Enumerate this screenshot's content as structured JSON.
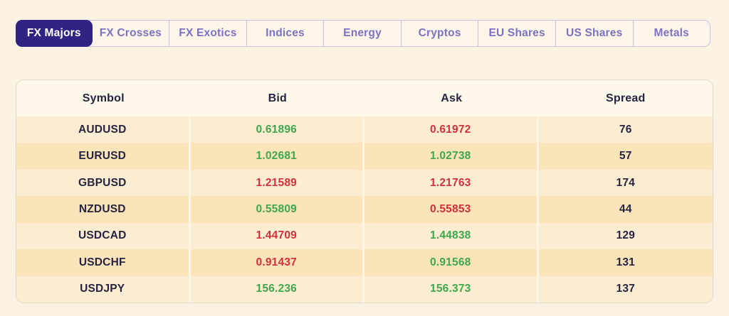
{
  "colors": {
    "page_bg": "#FBF2E2",
    "accent": "#2F2483",
    "tab_text": "#7C72C4",
    "tab_bar_bg": "#FDF5E8",
    "tab_border": "#C9C0E2",
    "heading_text": "#262440",
    "table_bg": "#FEF8EB",
    "table_border": "#DFD9CB",
    "row_light": "#FCEDD2",
    "row_dark": "#FBE4B9",
    "divider": "#FDF6E7",
    "positive": "#3FA74D",
    "negative": "#D1303C"
  },
  "tabs": [
    {
      "label": "FX Majors",
      "active": true
    },
    {
      "label": "FX Crosses",
      "active": false
    },
    {
      "label": "FX Exotics",
      "active": false
    },
    {
      "label": "Indices",
      "active": false
    },
    {
      "label": "Energy",
      "active": false
    },
    {
      "label": "Cryptos",
      "active": false
    },
    {
      "label": "EU Shares",
      "active": false
    },
    {
      "label": "US Shares",
      "active": false
    },
    {
      "label": "Metals",
      "active": false
    }
  ],
  "table": {
    "headers": [
      "Symbol",
      "Bid",
      "Ask",
      "Spread"
    ],
    "rows": [
      {
        "symbol": "AUDUSD",
        "bid": "0.61896",
        "bid_trend": "up",
        "ask": "0.61972",
        "ask_trend": "down",
        "spread": "76"
      },
      {
        "symbol": "EURUSD",
        "bid": "1.02681",
        "bid_trend": "up",
        "ask": "1.02738",
        "ask_trend": "up",
        "spread": "57"
      },
      {
        "symbol": "GBPUSD",
        "bid": "1.21589",
        "bid_trend": "down",
        "ask": "1.21763",
        "ask_trend": "down",
        "spread": "174"
      },
      {
        "symbol": "NZDUSD",
        "bid": "0.55809",
        "bid_trend": "up",
        "ask": "0.55853",
        "ask_trend": "down",
        "spread": "44"
      },
      {
        "symbol": "USDCAD",
        "bid": "1.44709",
        "bid_trend": "down",
        "ask": "1.44838",
        "ask_trend": "up",
        "spread": "129"
      },
      {
        "symbol": "USDCHF",
        "bid": "0.91437",
        "bid_trend": "down",
        "ask": "0.91568",
        "ask_trend": "up",
        "spread": "131"
      },
      {
        "symbol": "USDJPY",
        "bid": "156.236",
        "bid_trend": "up",
        "ask": "156.373",
        "ask_trend": "up",
        "spread": "137"
      }
    ]
  }
}
